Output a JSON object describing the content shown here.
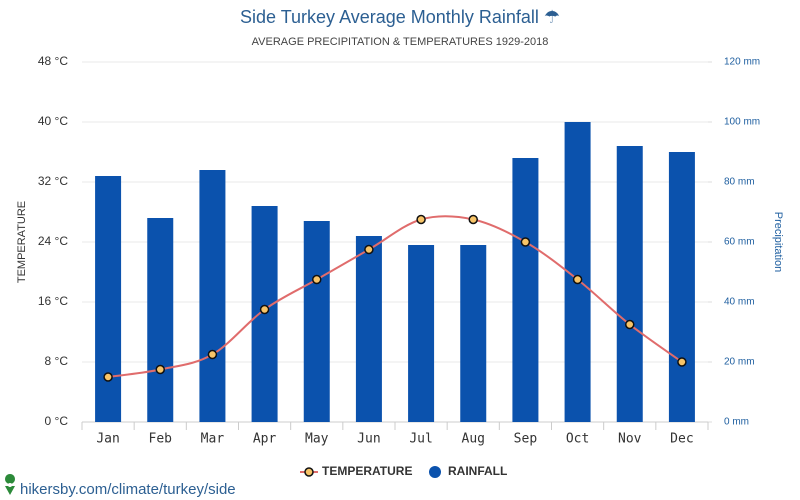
{
  "chart_data": {
    "type": "combo",
    "title": "Side Turkey Average Monthly Rainfall ☂",
    "subtitle": "AVERAGE PRECIPITATION & TEMPERATURES 1929-2018",
    "y_label": "TEMPERATURE",
    "y2_label": "Precipitation",
    "source": "hikersby.com/climate/turkey/side",
    "categories": [
      "Jan",
      "Feb",
      "Mar",
      "Apr",
      "May",
      "Jun",
      "Jul",
      "Aug",
      "Sep",
      "Oct",
      "Nov",
      "Dec"
    ],
    "series": [
      {
        "name": "TEMPERATURE",
        "type": "line",
        "color": "#e06c6c",
        "marker_color": "#f7c468",
        "values": [
          6,
          7,
          9,
          15,
          19,
          23,
          27,
          27,
          24,
          19,
          13,
          8
        ]
      },
      {
        "name": "RAINFALL",
        "type": "bar",
        "axis": "y2",
        "color": "#0b52ad",
        "values": [
          82,
          68,
          84,
          72,
          67,
          62,
          59,
          59,
          88,
          100,
          92,
          90
        ]
      }
    ],
    "ylim": [
      0,
      48
    ],
    "yticks": [
      {
        "value": 0,
        "label": "0 °C"
      },
      {
        "value": 8,
        "label": "8 °C"
      },
      {
        "value": 16,
        "label": "16 °C"
      },
      {
        "value": 24,
        "label": "24 °C"
      },
      {
        "value": 32,
        "label": "32 °C"
      },
      {
        "value": 40,
        "label": "40 °C"
      },
      {
        "value": 48,
        "label": "48 °C"
      }
    ],
    "y2lim": [
      0,
      120
    ],
    "y2ticks": [
      {
        "value": 0,
        "label": "0 mm"
      },
      {
        "value": 20,
        "label": "20 mm"
      },
      {
        "value": 40,
        "label": "40 mm"
      },
      {
        "value": 60,
        "label": "60 mm"
      },
      {
        "value": 80,
        "label": "80 mm"
      },
      {
        "value": 100,
        "label": "100 mm"
      },
      {
        "value": 120,
        "label": "120 mm"
      }
    ],
    "grid": true
  }
}
